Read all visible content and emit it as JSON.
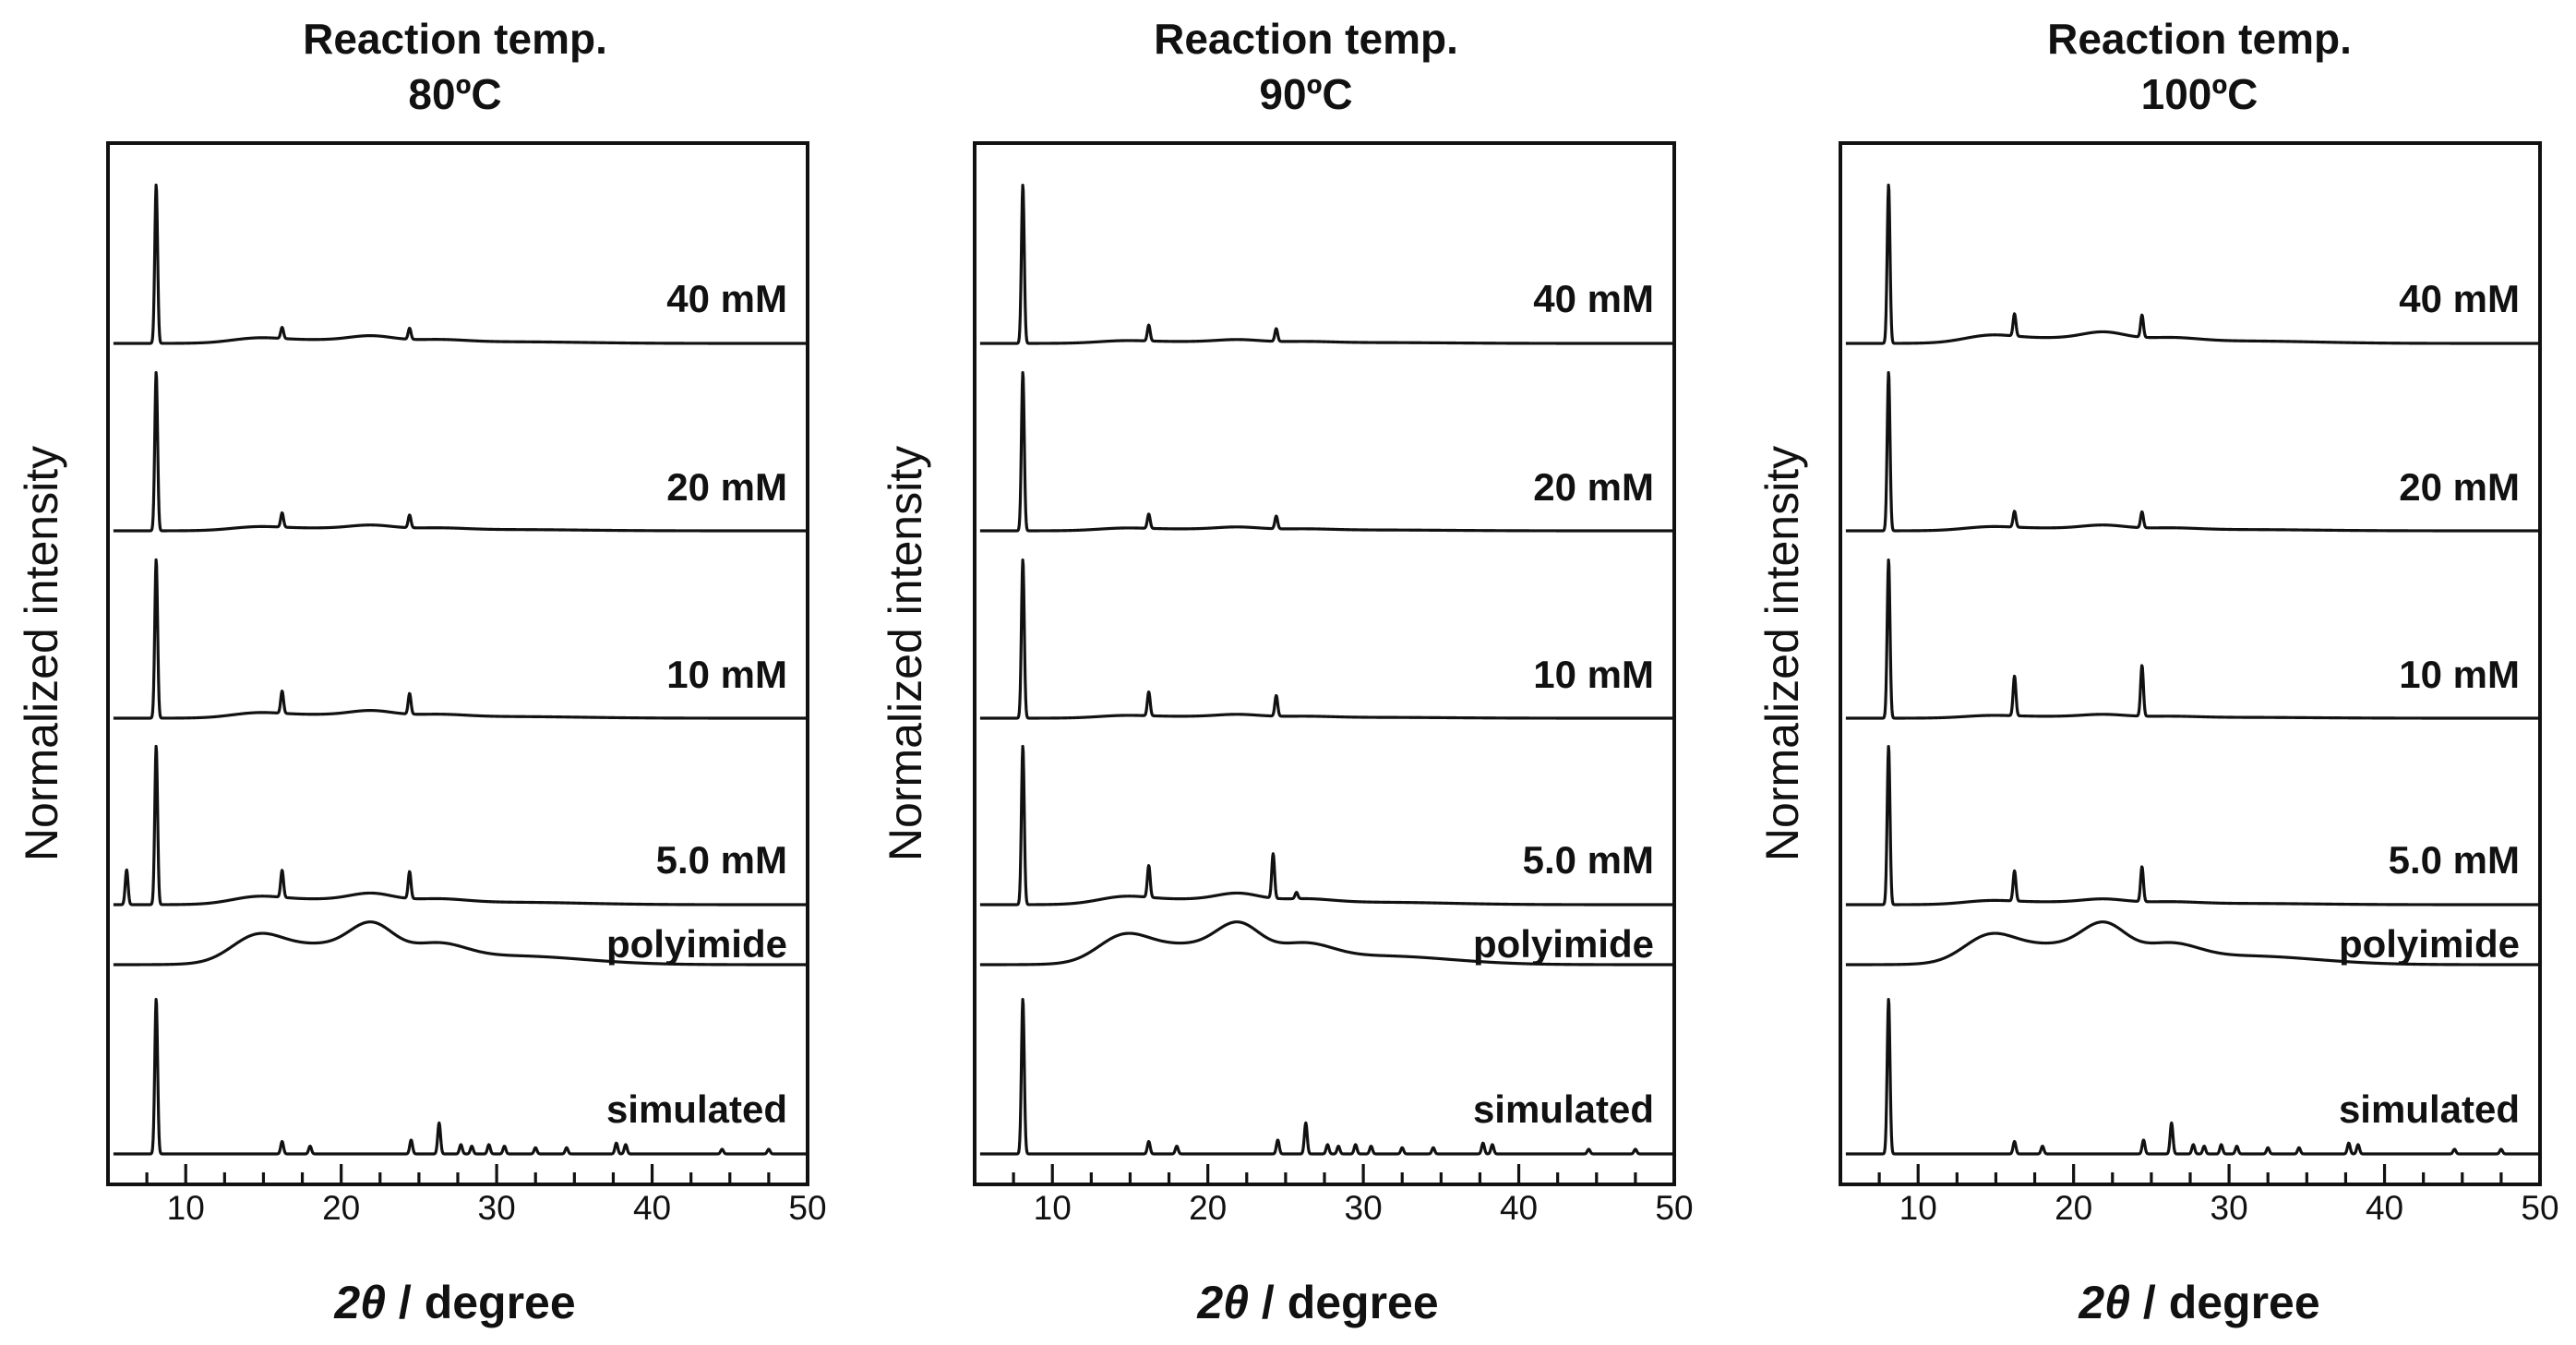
{
  "chart_data": [
    {
      "type": "line",
      "title_line1": "Reaction temp.",
      "title_line2": "80ºC",
      "xlabel_italic": "2θ",
      "xlabel_rest": " / degree",
      "ylabel": "Normalized intensity",
      "xlim": [
        5,
        50
      ],
      "xticks": [
        10,
        20,
        30,
        40,
        50
      ],
      "series": [
        {
          "name": "40 mM",
          "peaks": [
            [
              8.1,
              1.0
            ],
            [
              16.2,
              0.07
            ],
            [
              24.4,
              0.07
            ]
          ],
          "hump": 0.04
        },
        {
          "name": "20 mM",
          "peaks": [
            [
              8.1,
              1.0
            ],
            [
              16.2,
              0.09
            ],
            [
              24.4,
              0.08
            ]
          ],
          "hump": 0.03
        },
        {
          "name": "10 mM",
          "peaks": [
            [
              8.1,
              1.0
            ],
            [
              16.2,
              0.14
            ],
            [
              24.4,
              0.13
            ]
          ],
          "hump": 0.04
        },
        {
          "name": "5.0 mM",
          "peaks": [
            [
              6.2,
              0.22
            ],
            [
              8.1,
              1.0
            ],
            [
              16.2,
              0.17
            ],
            [
              24.4,
              0.17
            ]
          ],
          "hump": 0.06
        },
        {
          "name": "polyimide",
          "peaks": [],
          "hump": 1.0
        },
        {
          "name": "simulated",
          "peaks": [
            [
              8.1,
              1.0
            ],
            [
              16.2,
              0.08
            ],
            [
              18.0,
              0.05
            ],
            [
              24.5,
              0.09
            ],
            [
              26.3,
              0.2
            ],
            [
              27.7,
              0.06
            ],
            [
              28.4,
              0.05
            ],
            [
              29.5,
              0.06
            ],
            [
              30.5,
              0.05
            ],
            [
              32.5,
              0.04
            ],
            [
              34.5,
              0.04
            ],
            [
              37.7,
              0.07
            ],
            [
              38.3,
              0.06
            ],
            [
              44.5,
              0.03
            ],
            [
              47.5,
              0.03
            ]
          ],
          "hump": 0
        }
      ]
    },
    {
      "type": "line",
      "title_line1": "Reaction temp.",
      "title_line2": "90ºC",
      "xlabel_italic": "2θ",
      "xlabel_rest": " / degree",
      "ylabel": "Normalized intensity",
      "xlim": [
        5,
        50
      ],
      "xticks": [
        10,
        20,
        30,
        40,
        50
      ],
      "series": [
        {
          "name": "40 mM",
          "peaks": [
            [
              8.1,
              1.0
            ],
            [
              16.2,
              0.1
            ],
            [
              24.4,
              0.08
            ]
          ],
          "hump": 0.02
        },
        {
          "name": "20 mM",
          "peaks": [
            [
              8.1,
              1.0
            ],
            [
              16.2,
              0.09
            ],
            [
              24.4,
              0.08
            ]
          ],
          "hump": 0.02
        },
        {
          "name": "10 mM",
          "peaks": [
            [
              8.1,
              1.0
            ],
            [
              16.2,
              0.15
            ],
            [
              24.4,
              0.13
            ]
          ],
          "hump": 0.02
        },
        {
          "name": "5.0 mM",
          "peaks": [
            [
              8.1,
              1.0
            ],
            [
              16.2,
              0.2
            ],
            [
              24.2,
              0.28
            ],
            [
              25.7,
              0.04
            ]
          ],
          "hump": 0.06
        },
        {
          "name": "polyimide",
          "peaks": [],
          "hump": 1.0
        },
        {
          "name": "simulated",
          "peaks": [
            [
              8.1,
              1.0
            ],
            [
              16.2,
              0.08
            ],
            [
              18.0,
              0.05
            ],
            [
              24.5,
              0.09
            ],
            [
              26.3,
              0.2
            ],
            [
              27.7,
              0.06
            ],
            [
              28.4,
              0.05
            ],
            [
              29.5,
              0.06
            ],
            [
              30.5,
              0.05
            ],
            [
              32.5,
              0.04
            ],
            [
              34.5,
              0.04
            ],
            [
              37.7,
              0.07
            ],
            [
              38.3,
              0.06
            ],
            [
              44.5,
              0.03
            ],
            [
              47.5,
              0.03
            ]
          ],
          "hump": 0
        }
      ]
    },
    {
      "type": "line",
      "title_line1": "Reaction temp.",
      "title_line2": "100ºC",
      "xlabel_italic": "2θ",
      "xlabel_rest": " / degree",
      "ylabel": "Normalized intensity",
      "xlim": [
        5,
        50
      ],
      "xticks": [
        10,
        20,
        30,
        40,
        50
      ],
      "series": [
        {
          "name": "40 mM",
          "peaks": [
            [
              8.1,
              1.0
            ],
            [
              16.2,
              0.14
            ],
            [
              24.4,
              0.14
            ]
          ],
          "hump": 0.06
        },
        {
          "name": "20 mM",
          "peaks": [
            [
              8.1,
              1.0
            ],
            [
              16.2,
              0.1
            ],
            [
              24.4,
              0.1
            ]
          ],
          "hump": 0.03
        },
        {
          "name": "10 mM",
          "peaks": [
            [
              8.1,
              1.0
            ],
            [
              16.2,
              0.25
            ],
            [
              24.4,
              0.32
            ]
          ],
          "hump": 0.02
        },
        {
          "name": "5.0 mM",
          "peaks": [
            [
              8.1,
              1.0
            ],
            [
              16.2,
              0.19
            ],
            [
              24.4,
              0.22
            ]
          ],
          "hump": 0.03
        },
        {
          "name": "polyimide",
          "peaks": [],
          "hump": 1.0
        },
        {
          "name": "simulated",
          "peaks": [
            [
              8.1,
              1.0
            ],
            [
              16.2,
              0.08
            ],
            [
              18.0,
              0.05
            ],
            [
              24.5,
              0.09
            ],
            [
              26.3,
              0.2
            ],
            [
              27.7,
              0.06
            ],
            [
              28.4,
              0.05
            ],
            [
              29.5,
              0.06
            ],
            [
              30.5,
              0.05
            ],
            [
              32.5,
              0.04
            ],
            [
              34.5,
              0.04
            ],
            [
              37.7,
              0.07
            ],
            [
              38.3,
              0.06
            ],
            [
              44.5,
              0.03
            ],
            [
              47.5,
              0.03
            ]
          ],
          "hump": 0
        }
      ]
    }
  ]
}
